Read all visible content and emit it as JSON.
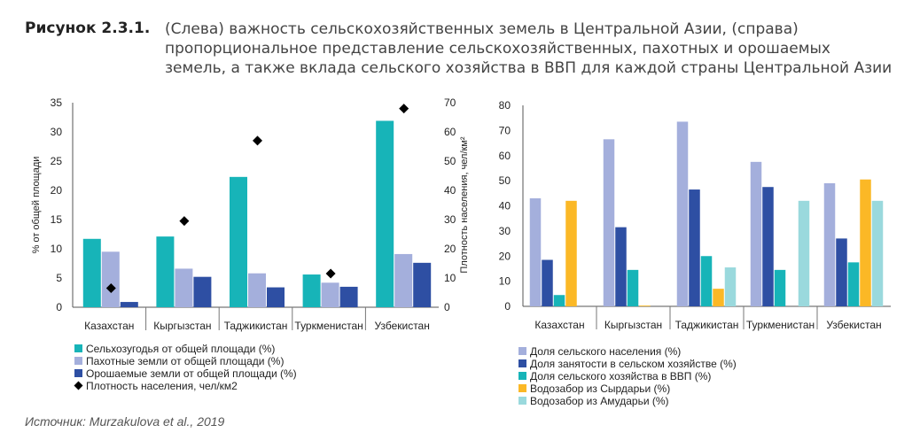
{
  "figure_label": "Рисунок 2.3.1.",
  "caption_lines": [
    "(Слева) важность сельскохозяйственных земель в Центральной Азии, (справа)",
    "пропорциональное представление сельскохозяйственных, пахотных и орошаемых",
    "земель, а также вклада сельского хозяйства в ВВП для каждой страны Центральной Азии"
  ],
  "source": "Источник: Murzakulova et al., 2019",
  "chart_data": [
    {
      "type": "bar",
      "categories": [
        "Казахстан",
        "Кыргызстан",
        "Таджикистан",
        "Туркменистан",
        "Узбекистан"
      ],
      "ylabel": "% от общей площади",
      "y2label": "Плотность населения, чел/км²",
      "ylim": [
        0,
        35
      ],
      "y2lim": [
        0,
        70
      ],
      "yticks": [
        0,
        5,
        10,
        15,
        20,
        25,
        30,
        35
      ],
      "y2ticks": [
        0,
        10,
        20,
        30,
        40,
        50,
        60,
        70
      ],
      "series": [
        {
          "name": "Сельхозугодья от общей площади (%)",
          "color": "#17b4b8",
          "values": [
            11.7,
            12.1,
            22.3,
            5.6,
            31.9
          ]
        },
        {
          "name": "Пахотные земли от общей площади (%)",
          "color": "#a4afdc",
          "values": [
            9.5,
            6.6,
            5.8,
            4.2,
            9.1
          ]
        },
        {
          "name": "Орошаемые земли от общей площади (%)",
          "color": "#2e4fa3",
          "values": [
            0.9,
            5.2,
            3.4,
            3.5,
            7.6
          ]
        }
      ],
      "scatter_series": {
        "name": "Плотность населения, чел/км2",
        "color": "#000000",
        "axis": "right",
        "values": [
          6.5,
          29.5,
          57,
          11.5,
          68
        ]
      },
      "legend_position": "bottom"
    },
    {
      "type": "bar",
      "categories": [
        "Казахстан",
        "Кыргызстан",
        "Таджикистан",
        "Туркменистан",
        "Узбекистан"
      ],
      "ylim": [
        0,
        80
      ],
      "yticks": [
        0,
        10,
        20,
        30,
        40,
        50,
        60,
        70,
        80
      ],
      "series": [
        {
          "name": "Доля сельского населения (%)",
          "color": "#a4afdc",
          "values": [
            43,
            66.5,
            73.5,
            57.5,
            49
          ]
        },
        {
          "name": "Доля занятости в сельском хозяйстве (%)",
          "color": "#2e4fa3",
          "values": [
            18.5,
            31.5,
            46.5,
            47.5,
            27
          ]
        },
        {
          "name": "Доля сельского хозяйства в ВВП (%)",
          "color": "#17b4b8",
          "values": [
            4.5,
            14.5,
            20,
            14.5,
            17.5
          ]
        },
        {
          "name": "Водозабор из Сырдарьи (%)",
          "color": "#fbb826",
          "values": [
            42,
            0.3,
            7,
            0,
            50.5
          ]
        },
        {
          "name": "Водозабор из Амударьи (%)",
          "color": "#9ad9dd",
          "values": [
            0,
            0,
            15.5,
            42,
            42
          ]
        }
      ],
      "legend_position": "bottom"
    }
  ]
}
